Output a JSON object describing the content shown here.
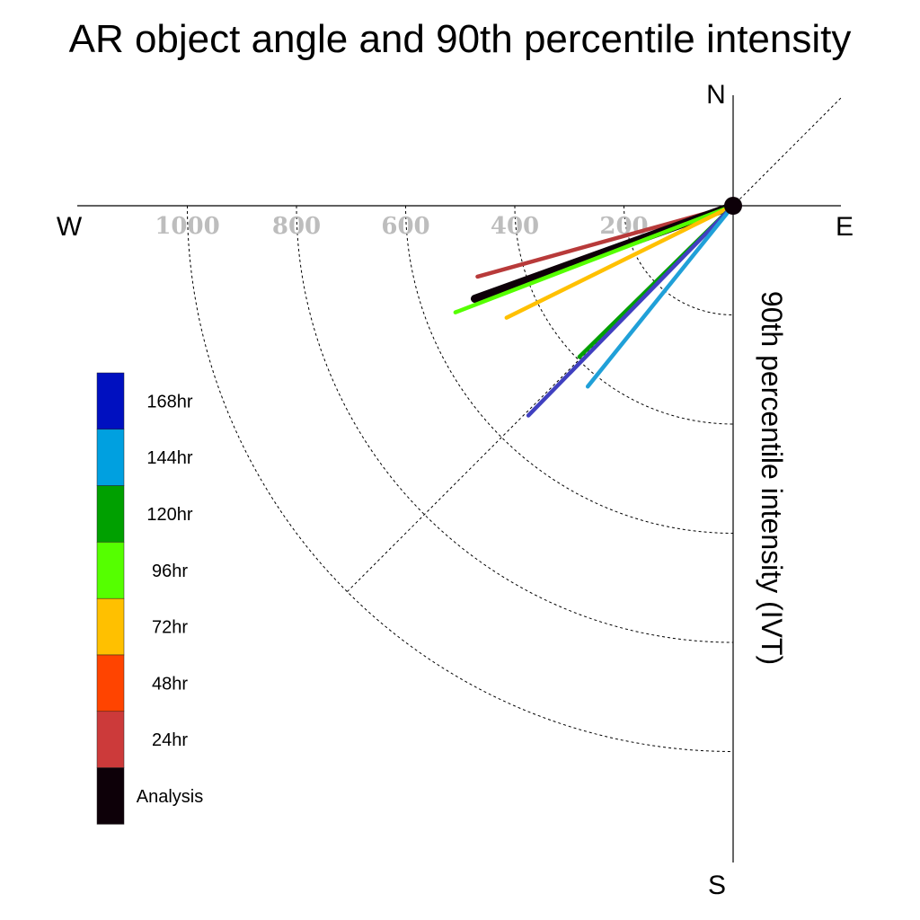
{
  "chart_data": {
    "type": "polar-vector",
    "title": "AR object angle and 90th percentile intensity",
    "radial_label": "90th percentile intensity (IVT)",
    "compass": {
      "north": "N",
      "south": "S",
      "east": "E",
      "west": "W"
    },
    "radial_ticks": [
      200,
      400,
      600,
      800,
      1000
    ],
    "rlim": [
      0,
      1200
    ],
    "angle_range_deg": [
      0,
      90
    ],
    "grid": true,
    "diagonal_reference_deg": 45,
    "legend": {
      "placement": "left",
      "entries": [
        {
          "label": "168hr",
          "color": "#0010c0"
        },
        {
          "label": "144hr",
          "color": "#00a0e0"
        },
        {
          "label": "120hr",
          "color": "#00a000"
        },
        {
          "label": "96hr",
          "color": "#55ff00"
        },
        {
          "label": "72hr",
          "color": "#ffc000"
        },
        {
          "label": "48hr",
          "color": "#ff4400"
        },
        {
          "label": "24hr",
          "color": "#cc3a3a"
        },
        {
          "label": "Analysis",
          "color": "#0d0008"
        }
      ]
    },
    "series": [
      {
        "name": "24hr",
        "color": "#b83a3a",
        "angle_deg": 15.5,
        "intensity": 486
      },
      {
        "name": "Analysis",
        "color": "#0d0008",
        "angle_deg": 19.8,
        "intensity": 503
      },
      {
        "name": "96hr",
        "color": "#55ff00",
        "angle_deg": 21.0,
        "intensity": 545
      },
      {
        "name": "72hr",
        "color": "#ffc000",
        "angle_deg": 26.3,
        "intensity": 463
      },
      {
        "name": "120hr",
        "color": "#00a000",
        "angle_deg": 44.5,
        "intensity": 395
      },
      {
        "name": "168hr",
        "color": "#4040c0",
        "angle_deg": 45.7,
        "intensity": 537
      },
      {
        "name": "144hr",
        "color": "#20a0d8",
        "angle_deg": 51.2,
        "intensity": 425
      }
    ]
  }
}
